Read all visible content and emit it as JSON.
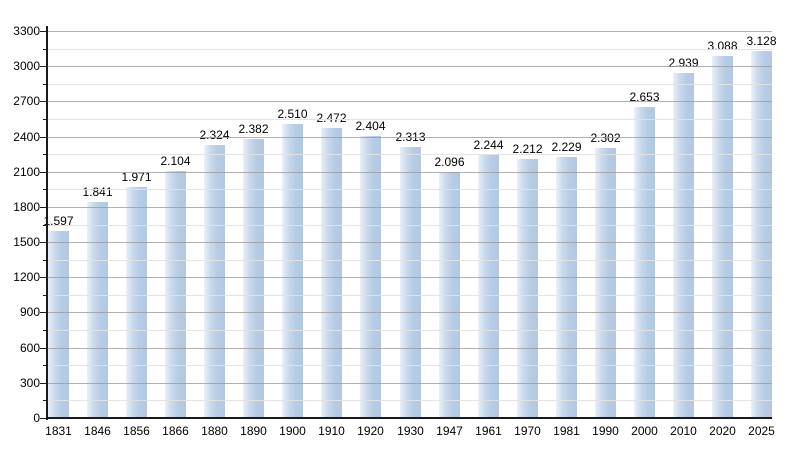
{
  "chart_data": {
    "type": "bar",
    "title": "",
    "xlabel": "",
    "ylabel": "",
    "categories": [
      "1831",
      "1846",
      "1856",
      "1866",
      "1880",
      "1890",
      "1900",
      "1910",
      "1920",
      "1930",
      "1947",
      "1961",
      "1970",
      "1981",
      "1990",
      "2000",
      "2010",
      "2020",
      "2025"
    ],
    "values": [
      1597,
      1841,
      1971,
      2104,
      2324,
      2382,
      2510,
      2472,
      2404,
      2313,
      2096,
      2244,
      2212,
      2229,
      2302,
      2653,
      2939,
      3088,
      3128
    ],
    "value_labels": [
      "1.597",
      "1.841",
      "1.971",
      "2.104",
      "2.324",
      "2.382",
      "2.510",
      "2.472",
      "2.404",
      "2.313",
      "2.096",
      "2.244",
      "2.212",
      "2.229",
      "2.302",
      "2.653",
      "2.939",
      "3.088",
      "3.128"
    ],
    "ylim": [
      0,
      3300
    ],
    "y_major_step": 300,
    "y_minor_step": 150,
    "y_tick_labels": [
      "0",
      "300",
      "600",
      "900",
      "1200",
      "1500",
      "1800",
      "2100",
      "2400",
      "2700",
      "3000",
      "3300"
    ],
    "grid": "on",
    "legend": "none",
    "colors": {
      "bar_main": "#b2c8e1",
      "bar_mid": "#b7cce5",
      "bar_soft": "#cddcee",
      "bar_light": "#eaf1f8",
      "major_grid": "#9b9b9b",
      "minor_grid": "#e2e2e2",
      "axis": "#1a1a1a",
      "label_text": "#000000",
      "background": "#ffffff"
    }
  }
}
